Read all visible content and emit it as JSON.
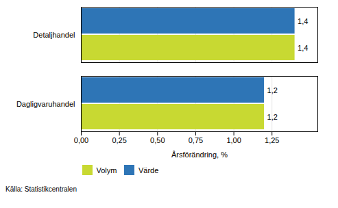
{
  "chart_data": {
    "type": "bar",
    "orientation": "horizontal",
    "categories": [
      "Dagligvaruhandel",
      "Detaljhandel"
    ],
    "series": [
      {
        "name": "Volym",
        "color": "#c8d932",
        "values": [
          1.2,
          1.4
        ],
        "value_labels": [
          "1,2",
          "1,4"
        ]
      },
      {
        "name": "Värde",
        "color": "#2e75b6",
        "values": [
          1.2,
          1.4
        ],
        "value_labels": [
          "1,2",
          "1,4"
        ]
      }
    ],
    "xlabel": "Årsförändring, %",
    "xlim": [
      0,
      1.55
    ],
    "xticks": [
      {
        "value": 0.0,
        "label": "0,00"
      },
      {
        "value": 0.25,
        "label": "0,25"
      },
      {
        "value": 0.5,
        "label": "0,50"
      },
      {
        "value": 0.75,
        "label": "0,75"
      },
      {
        "value": 1.0,
        "label": "1,00"
      },
      {
        "value": 1.25,
        "label": "1,25"
      }
    ],
    "grid": true,
    "data_labels": true,
    "legend": "bottom",
    "annotations": [
      "Källa: Statistikcentralen"
    ]
  }
}
